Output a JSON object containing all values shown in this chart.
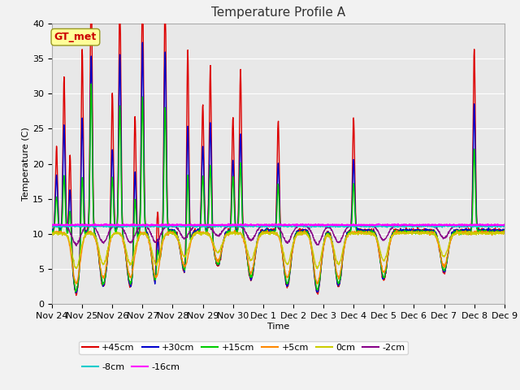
{
  "title": "Temperature Profile A",
  "xlabel": "Time",
  "ylabel": "Temperature (C)",
  "ylim": [
    0,
    40
  ],
  "annotation": "GT_met",
  "annotation_color": "#cc0000",
  "annotation_bg": "#ffff99",
  "background_color": "#e8e8e8",
  "grid_color": "#ffffff",
  "series": [
    {
      "label": "+45cm",
      "color": "#dd0000",
      "lw": 1.0
    },
    {
      "label": "+30cm",
      "color": "#0000cc",
      "lw": 1.0
    },
    {
      "label": "+15cm",
      "color": "#00cc00",
      "lw": 1.0
    },
    {
      "label": "+5cm",
      "color": "#ff8800",
      "lw": 1.0
    },
    {
      "label": "0cm",
      "color": "#cccc00",
      "lw": 1.0
    },
    {
      "label": "-2cm",
      "color": "#880088",
      "lw": 1.0
    },
    {
      "label": "-8cm",
      "color": "#00cccc",
      "lw": 1.0
    },
    {
      "label": "-16cm",
      "color": "#ff00ff",
      "lw": 1.2
    }
  ],
  "x_tick_labels": [
    "Nov 24",
    "Nov 25",
    "Nov 26",
    "Nov 27",
    "Nov 28",
    "Nov 29",
    "Nov 30",
    "Dec 1",
    "Dec 2",
    "Dec 3",
    "Dec 4",
    "Dec 5",
    "Dec 6",
    "Dec 7",
    "Dec 8",
    "Dec 9"
  ],
  "yticks": [
    0,
    5,
    10,
    15,
    20,
    25,
    30,
    35,
    40
  ],
  "title_fontsize": 11,
  "axis_fontsize": 8,
  "tick_fontsize": 8,
  "legend_fontsize": 8
}
